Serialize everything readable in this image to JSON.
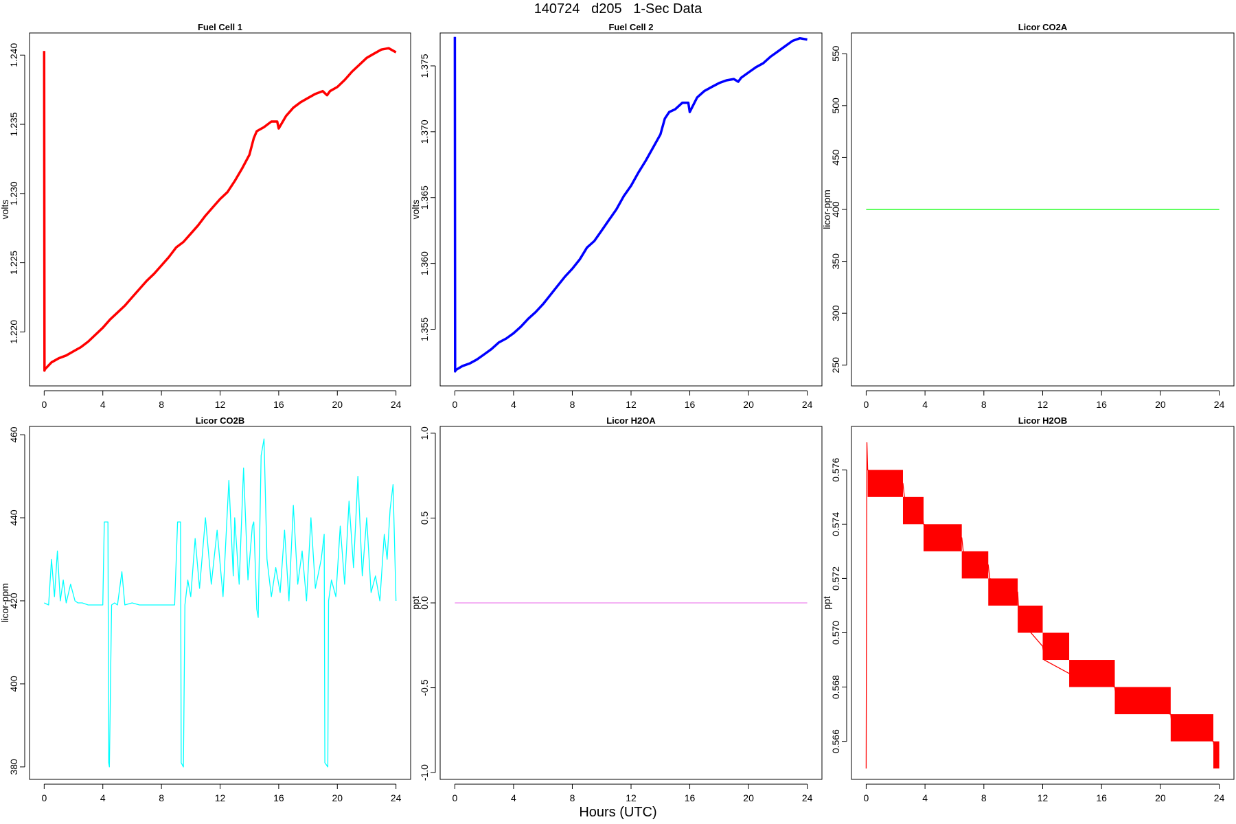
{
  "figure": {
    "title": "140724   d205   1-Sec Data",
    "xlabel": "Hours (UTC)"
  },
  "chart_data": [
    {
      "type": "line",
      "title": "Fuel Cell 1",
      "ylabel": "volts",
      "color": "#ff0000",
      "xlim": [
        -1,
        25
      ],
      "ylim": [
        1.2161,
        1.2416
      ],
      "xticks": [
        0,
        4,
        8,
        12,
        16,
        20,
        24
      ],
      "yticks": [
        1.22,
        1.225,
        1.23,
        1.235,
        1.24
      ],
      "yticklabels": [
        "1.220",
        "1.225",
        "1.230",
        "1.235",
        "1.240"
      ],
      "x": [
        0,
        0.02,
        0.05,
        0.5,
        1,
        1.5,
        2,
        2.5,
        3,
        3.5,
        4,
        4.5,
        5,
        5.5,
        6,
        6.5,
        7,
        7.5,
        8,
        8.5,
        9,
        9.5,
        10,
        10.5,
        11,
        11.5,
        12,
        12.5,
        13,
        13.5,
        14,
        14.3,
        14.5,
        15,
        15.5,
        15.9,
        16,
        16.5,
        17,
        17.5,
        18,
        18.5,
        19,
        19.3,
        19.5,
        20,
        20.5,
        21,
        21.5,
        22,
        22.5,
        23,
        23.5,
        24
      ],
      "y": [
        1.2403,
        1.2172,
        1.2173,
        1.2178,
        1.2181,
        1.2183,
        1.2186,
        1.2189,
        1.2193,
        1.2198,
        1.2203,
        1.2209,
        1.2214,
        1.2219,
        1.2225,
        1.2231,
        1.2237,
        1.2242,
        1.2248,
        1.2254,
        1.2261,
        1.2265,
        1.2271,
        1.2277,
        1.2284,
        1.229,
        1.2296,
        1.2301,
        1.2309,
        1.2318,
        1.2328,
        1.234,
        1.2345,
        1.2348,
        1.2352,
        1.2352,
        1.2347,
        1.2356,
        1.2362,
        1.2366,
        1.2369,
        1.2372,
        1.2374,
        1.2371,
        1.2374,
        1.2377,
        1.2382,
        1.2388,
        1.2393,
        1.2398,
        1.2401,
        1.2404,
        1.2405,
        1.2402
      ]
    },
    {
      "type": "line",
      "title": "Fuel Cell 2",
      "ylabel": "volts",
      "color": "#0000ff",
      "xlim": [
        -1,
        25
      ],
      "ylim": [
        1.3507,
        1.3775
      ],
      "xticks": [
        0,
        4,
        8,
        12,
        16,
        20,
        24
      ],
      "yticks": [
        1.355,
        1.36,
        1.365,
        1.37,
        1.375
      ],
      "yticklabels": [
        "1.355",
        "1.360",
        "1.365",
        "1.370",
        "1.375"
      ],
      "x": [
        0,
        0.02,
        0.05,
        0.5,
        1,
        1.5,
        2,
        2.5,
        3,
        3.5,
        4,
        4.5,
        5,
        5.5,
        6,
        6.5,
        7,
        7.5,
        8,
        8.5,
        9,
        9.5,
        10,
        10.5,
        11,
        11.5,
        12,
        12.5,
        13,
        13.5,
        14,
        14.3,
        14.6,
        15,
        15.5,
        15.9,
        16,
        16.5,
        17,
        17.5,
        18,
        18.5,
        19,
        19.3,
        19.5,
        20,
        20.5,
        21,
        21.5,
        22,
        22.5,
        23,
        23.5,
        24
      ],
      "y": [
        1.3772,
        1.3518,
        1.3519,
        1.3522,
        1.3524,
        1.3527,
        1.3531,
        1.3535,
        1.354,
        1.3543,
        1.3547,
        1.3552,
        1.3558,
        1.3563,
        1.3569,
        1.3576,
        1.3583,
        1.359,
        1.3596,
        1.3603,
        1.3612,
        1.3617,
        1.3625,
        1.3633,
        1.3641,
        1.3651,
        1.3659,
        1.3669,
        1.3678,
        1.3688,
        1.3698,
        1.371,
        1.3715,
        1.3717,
        1.3722,
        1.3722,
        1.3715,
        1.3726,
        1.3731,
        1.3734,
        1.3737,
        1.3739,
        1.374,
        1.3738,
        1.3741,
        1.3745,
        1.3749,
        1.3752,
        1.3757,
        1.3761,
        1.3765,
        1.3769,
        1.3771,
        1.377
      ]
    },
    {
      "type": "line",
      "title": "Licor CO2A",
      "ylabel": "licor-ppm",
      "color": "#00ff00",
      "xlim": [
        -1,
        25
      ],
      "ylim": [
        230,
        570
      ],
      "xticks": [
        0,
        4,
        8,
        12,
        16,
        20,
        24
      ],
      "yticks": [
        250,
        300,
        350,
        400,
        450,
        500,
        550
      ],
      "yticklabels": [
        "250",
        "300",
        "350",
        "400",
        "450",
        "500",
        "550"
      ],
      "x": [
        0,
        24
      ],
      "y": [
        400,
        400
      ]
    },
    {
      "type": "line",
      "title": "Licor CO2B",
      "ylabel": "licor-ppm",
      "color": "#00ffff",
      "xlim": [
        -1,
        25
      ],
      "ylim": [
        377,
        462
      ],
      "xticks": [
        0,
        4,
        8,
        12,
        16,
        20,
        24
      ],
      "yticks": [
        380,
        400,
        420,
        440,
        460
      ],
      "yticklabels": [
        "380",
        "400",
        "420",
        "440",
        "460"
      ],
      "x": [
        0,
        0.3,
        0.5,
        0.7,
        0.9,
        1.1,
        1.3,
        1.5,
        1.8,
        2.1,
        2.3,
        2.6,
        3.0,
        3.5,
        4.0,
        4.1,
        4.15,
        4.35,
        4.4,
        4.45,
        4.6,
        4.8,
        5.0,
        5.3,
        5.5,
        6.0,
        6.5,
        7.0,
        7.5,
        8.0,
        8.5,
        8.9,
        9.1,
        9.15,
        9.3,
        9.35,
        9.5,
        9.6,
        9.8,
        10.0,
        10.3,
        10.6,
        11.0,
        11.4,
        11.8,
        12.2,
        12.6,
        12.9,
        13.0,
        13.3,
        13.6,
        13.9,
        14.2,
        14.3,
        14.5,
        14.6,
        14.8,
        15.0,
        15.2,
        15.5,
        15.8,
        16.1,
        16.4,
        16.7,
        17.0,
        17.3,
        17.6,
        17.9,
        18.2,
        18.5,
        18.9,
        19.1,
        19.15,
        19.35,
        19.4,
        19.6,
        19.9,
        20.2,
        20.5,
        20.8,
        21.1,
        21.4,
        21.7,
        22.0,
        22.3,
        22.6,
        22.9,
        23.2,
        23.4,
        23.6,
        23.8,
        24.0
      ],
      "y": [
        419.5,
        419,
        430,
        421,
        432,
        420,
        425,
        419.5,
        424,
        420,
        419.5,
        419.5,
        419,
        419,
        419,
        439,
        439,
        439,
        381,
        380,
        419,
        419.5,
        419,
        427,
        419,
        419.5,
        419,
        419,
        419,
        419,
        419,
        419,
        439,
        439,
        439,
        381,
        380,
        419,
        425,
        421,
        435,
        423,
        440,
        424,
        437,
        421,
        449,
        426,
        440,
        424,
        452,
        425,
        438,
        439,
        418,
        416,
        455,
        459,
        430,
        421,
        428,
        422,
        437,
        420,
        443,
        424,
        432,
        420,
        440,
        423,
        430,
        436,
        381,
        380,
        420,
        425,
        421,
        438,
        424,
        444,
        428,
        450,
        426,
        440,
        422,
        426,
        420,
        436,
        430,
        442,
        448,
        420
      ]
    },
    {
      "type": "line",
      "title": "Licor H2OA",
      "ylabel": "ppt",
      "color": "#ee82ee",
      "xlim": [
        -1,
        25
      ],
      "ylim": [
        -1.04,
        1.04
      ],
      "xticks": [
        0,
        4,
        8,
        12,
        16,
        20,
        24
      ],
      "yticks": [
        -1,
        -0.5,
        0,
        0.5,
        1
      ],
      "yticklabels": [
        "-1.0",
        "-0.5",
        "0.0",
        "0.5",
        "1.0"
      ],
      "x": [
        0,
        24
      ],
      "y": [
        0,
        0
      ]
    },
    {
      "type": "line",
      "title": "Licor H2OB",
      "ylabel": "ppt",
      "color": "#ff0000",
      "xlim": [
        -1,
        25
      ],
      "ylim": [
        0.5646,
        0.5776
      ],
      "xticks": [
        0,
        4,
        8,
        12,
        16,
        20,
        24
      ],
      "yticks": [
        0.566,
        0.568,
        0.57,
        0.572,
        0.574,
        0.576
      ],
      "yticklabels": [
        "0.566",
        "0.568",
        "0.570",
        "0.572",
        "0.574",
        "0.576"
      ],
      "x": [
        0,
        0.05,
        0.1,
        2.5,
        2.6,
        3.8,
        3.9,
        6.5,
        6.6,
        8.3,
        8.4,
        10.3,
        10.4,
        12.0,
        12.1,
        13.8,
        13.9,
        16.9,
        17.0,
        20.7,
        20.8,
        23.6,
        23.7,
        24.0
      ],
      "y": [
        0.565,
        0.577,
        0.576,
        0.5755,
        0.575,
        0.5745,
        0.574,
        0.5735,
        0.573,
        0.5725,
        0.572,
        0.5715,
        0.5705,
        0.5695,
        0.569,
        0.5685,
        0.5685,
        0.568,
        0.5675,
        0.567,
        0.5665,
        0.566,
        0.5655,
        0.5655
      ],
      "ranges": [
        {
          "x0": 0.1,
          "x1": 2.5,
          "ylo": 0.575,
          "yhi": 0.576
        },
        {
          "x0": 2.5,
          "x1": 3.9,
          "ylo": 0.574,
          "yhi": 0.575
        },
        {
          "x0": 3.9,
          "x1": 6.5,
          "ylo": 0.573,
          "yhi": 0.574
        },
        {
          "x0": 6.5,
          "x1": 8.3,
          "ylo": 0.572,
          "yhi": 0.573
        },
        {
          "x0": 8.3,
          "x1": 10.3,
          "ylo": 0.571,
          "yhi": 0.572
        },
        {
          "x0": 10.3,
          "x1": 12.0,
          "ylo": 0.57,
          "yhi": 0.571
        },
        {
          "x0": 12.0,
          "x1": 13.8,
          "ylo": 0.569,
          "yhi": 0.57
        },
        {
          "x0": 13.8,
          "x1": 16.9,
          "ylo": 0.568,
          "yhi": 0.569
        },
        {
          "x0": 16.9,
          "x1": 20.7,
          "ylo": 0.567,
          "yhi": 0.568
        },
        {
          "x0": 20.7,
          "x1": 23.6,
          "ylo": 0.566,
          "yhi": 0.567
        },
        {
          "x0": 23.6,
          "x1": 24.0,
          "ylo": 0.565,
          "yhi": 0.566
        }
      ]
    }
  ]
}
